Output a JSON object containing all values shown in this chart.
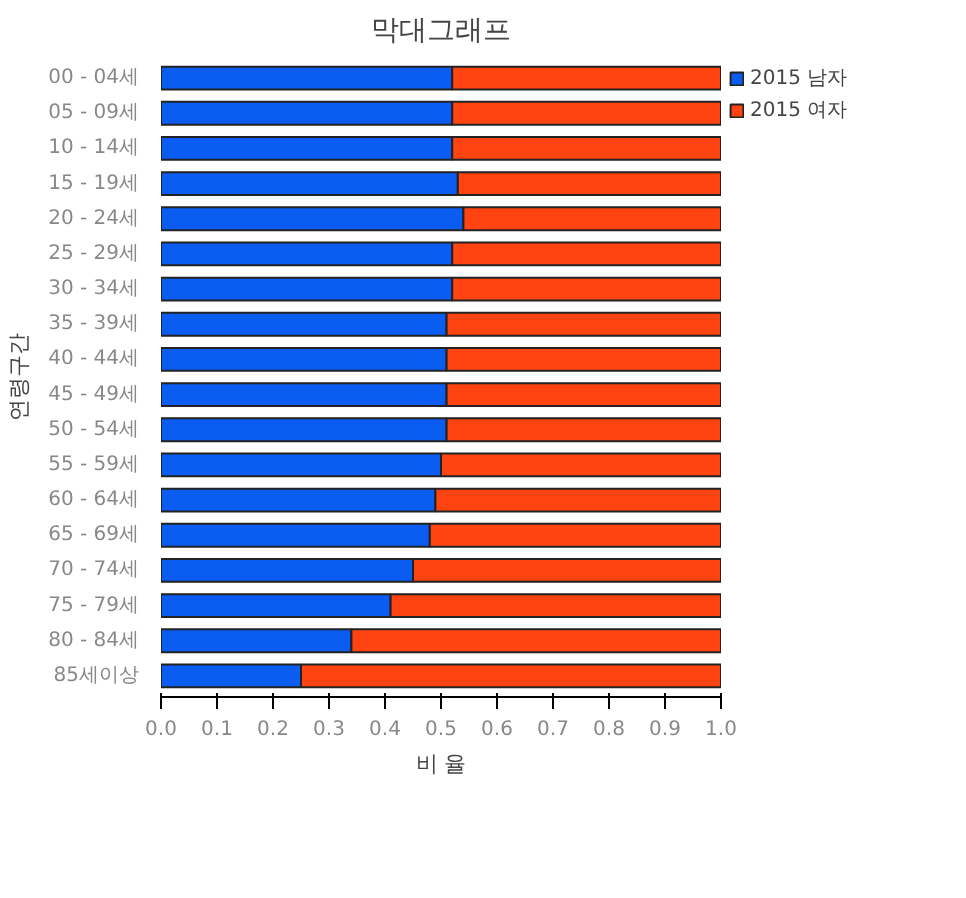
{
  "chart_data": {
    "type": "bar",
    "orientation": "horizontal",
    "stacked": true,
    "title": "막대그래프",
    "xlabel": "비 율",
    "ylabel": "연령구간",
    "categories": [
      "00 - 04세",
      "05 - 09세",
      "10 - 14세",
      "15 - 19세",
      "20 - 24세",
      "25 - 29세",
      "30 - 34세",
      "35 - 39세",
      "40 - 44세",
      "45 - 49세",
      "50 - 54세",
      "55 - 59세",
      "60 - 64세",
      "65 - 69세",
      "70 - 74세",
      "75 - 79세",
      "80 - 84세",
      "85세이상"
    ],
    "series": [
      {
        "name": "2015 남자",
        "color": "#0b5cf0",
        "values": [
          0.52,
          0.52,
          0.52,
          0.53,
          0.54,
          0.52,
          0.52,
          0.51,
          0.51,
          0.51,
          0.51,
          0.5,
          0.49,
          0.48,
          0.45,
          0.41,
          0.34,
          0.25
        ]
      },
      {
        "name": "2015 여자",
        "color": "#ff4411",
        "values": [
          0.48,
          0.48,
          0.48,
          0.47,
          0.46,
          0.48,
          0.48,
          0.49,
          0.49,
          0.49,
          0.49,
          0.5,
          0.51,
          0.52,
          0.55,
          0.59,
          0.66,
          0.75
        ]
      }
    ],
    "xlim": [
      0,
      1
    ],
    "xticks": [
      {
        "value": 0,
        "label": "0.0"
      },
      {
        "value": 0.1,
        "label": "0.1"
      },
      {
        "value": 0.2,
        "label": "0.2"
      },
      {
        "value": 0.3,
        "label": "0.3"
      },
      {
        "value": 0.4,
        "label": "0.4"
      },
      {
        "value": 0.5,
        "label": "0.5"
      },
      {
        "value": 0.6,
        "label": "0.6"
      },
      {
        "value": 0.7,
        "label": "0.7"
      },
      {
        "value": 0.8,
        "label": "0.8"
      },
      {
        "value": 0.9,
        "label": "0.9"
      },
      {
        "value": 1,
        "label": "1.0"
      }
    ],
    "grid": false,
    "legend": "right"
  }
}
